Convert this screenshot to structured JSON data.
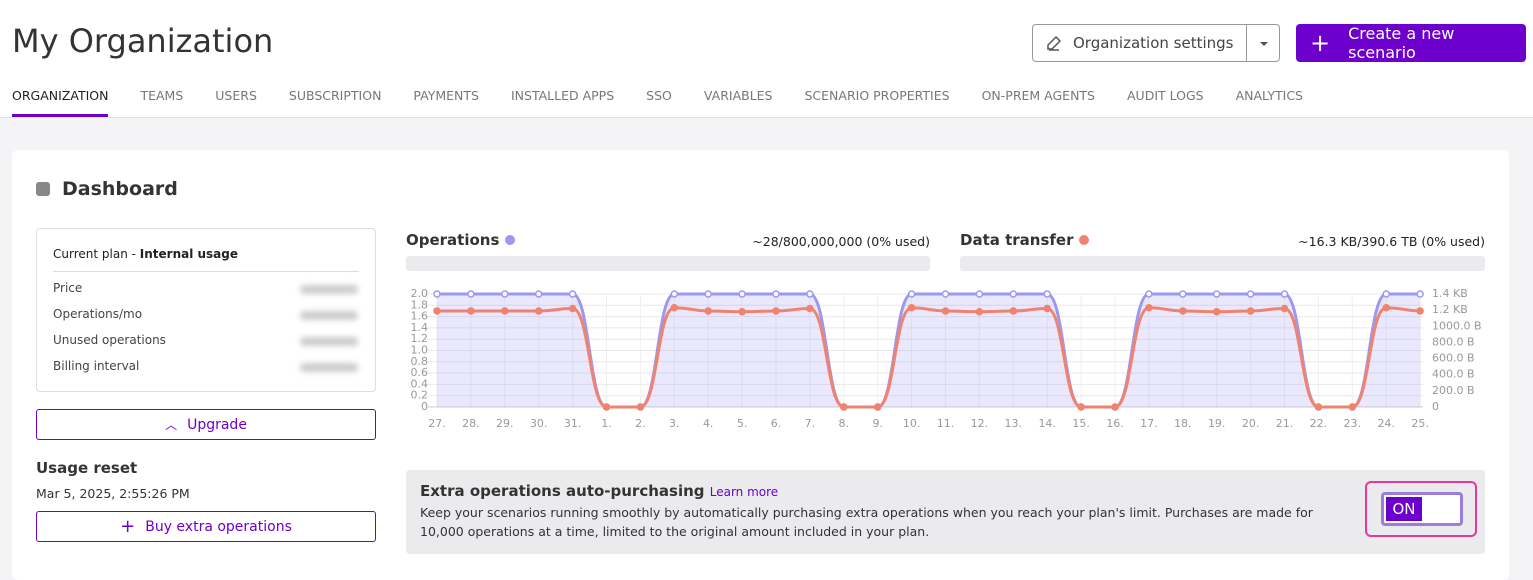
{
  "header": {
    "title": "My Organization",
    "settings_button": "Organization settings",
    "create_button": "Create a new scenario"
  },
  "tabs": [
    "ORGANIZATION",
    "TEAMS",
    "USERS",
    "SUBSCRIPTION",
    "PAYMENTS",
    "INSTALLED APPS",
    "SSO",
    "VARIABLES",
    "SCENARIO PROPERTIES",
    "ON-PREM AGENTS",
    "AUDIT LOGS",
    "ANALYTICS"
  ],
  "dashboard": {
    "title": "Dashboard",
    "plan": {
      "prefix": "Current plan - ",
      "name": "Internal usage",
      "rows": [
        "Price",
        "Operations/mo",
        "Unused operations",
        "Billing interval"
      ]
    },
    "upgrade": "Upgrade",
    "usage_reset": {
      "title": "Usage reset",
      "date": "Mar 5, 2025, 2:55:26 PM"
    },
    "buy_extra": "Buy extra operations",
    "operations": {
      "title": "Operations",
      "usage": "~28/800,000,000 (0% used)"
    },
    "data_transfer": {
      "title": "Data transfer",
      "usage": "~16.3 KB/390.6 TB (0% used)"
    },
    "auto_purchase": {
      "title": "Extra operations auto-purchasing",
      "link": "Learn more",
      "text": "Keep your scenarios running smoothly by automatically purchasing extra operations when you reach your plan's limit. Purchases are made for 10,000 operations at a time, limited to the original amount included in your plan.",
      "toggle": "ON"
    }
  },
  "chart_data": {
    "type": "line",
    "categories": [
      "27.",
      "28.",
      "29.",
      "30.",
      "31.",
      "1.",
      "2.",
      "3.",
      "4.",
      "5.",
      "6.",
      "7.",
      "8.",
      "9.",
      "10.",
      "11.",
      "12.",
      "13.",
      "14.",
      "15.",
      "16.",
      "17.",
      "18.",
      "19.",
      "20.",
      "21.",
      "22.",
      "23.",
      "24.",
      "25."
    ],
    "series": [
      {
        "name": "Operations",
        "color": "#9b98f2",
        "values": [
          2,
          2,
          2,
          2,
          2,
          0,
          0,
          2,
          2,
          2,
          2,
          2,
          0,
          0,
          2,
          2,
          2,
          2,
          2,
          0,
          0,
          2,
          2,
          2,
          2,
          2,
          0,
          0,
          2,
          2
        ]
      },
      {
        "name": "Data transfer",
        "color": "#f0836f",
        "axis": "y2",
        "values": [
          1190,
          1190,
          1190,
          1190,
          1220,
          0,
          0,
          1230,
          1190,
          1180,
          1190,
          1220,
          0,
          0,
          1230,
          1190,
          1180,
          1190,
          1220,
          0,
          0,
          1230,
          1190,
          1180,
          1190,
          1220,
          0,
          0,
          1230,
          1190
        ]
      }
    ],
    "ylim": [
      0,
      2
    ],
    "yticks": [
      0,
      0.2,
      0.4,
      0.6,
      0.8,
      {
        "value": 1,
        "label": "1.0"
      },
      1.2,
      1.4,
      1.6,
      1.8,
      {
        "value": 2,
        "label": "2.0"
      }
    ],
    "y2lim": [
      0,
      1400
    ],
    "y2ticks": [
      0,
      {
        "value": 200,
        "label": "200.0 B"
      },
      {
        "value": 400,
        "label": "400.0 B"
      },
      {
        "value": 600,
        "label": "600.0 B"
      },
      {
        "value": 800,
        "label": "800.0 B"
      },
      {
        "value": 1000,
        "label": "1000.0 B"
      },
      {
        "value": 1200,
        "label": "1.2 KB"
      },
      {
        "value": 1400,
        "label": "1.4 KB"
      }
    ],
    "grid": true
  }
}
